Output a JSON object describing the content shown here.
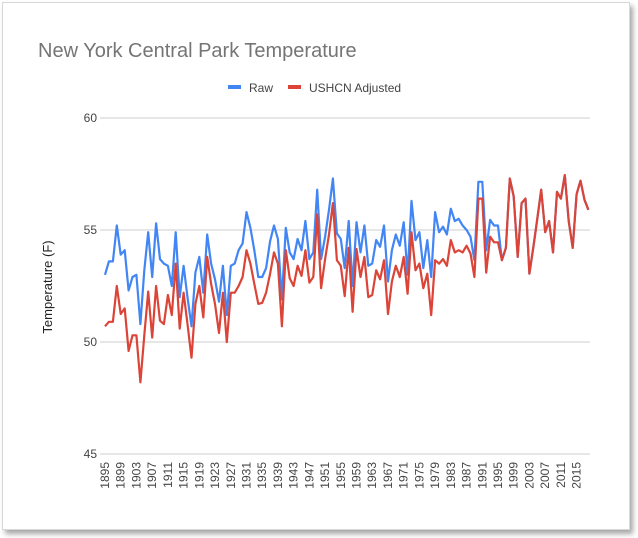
{
  "chart_data": {
    "type": "line",
    "title": "New York Central Park Temperature",
    "xlabel": "",
    "ylabel": "Temperature (F)",
    "ylim": [
      45,
      60
    ],
    "y_ticks": [
      "45",
      "50",
      "55",
      "60"
    ],
    "x_ticks": [
      "1895",
      "1899",
      "1903",
      "1907",
      "1911",
      "1915",
      "1919",
      "1923",
      "1927",
      "1931",
      "1935",
      "1939",
      "1943",
      "1947",
      "1951",
      "1955",
      "1959",
      "1963",
      "1967",
      "1971",
      "1975",
      "1979",
      "1983",
      "1987",
      "1991",
      "1995",
      "1999",
      "2003",
      "2007",
      "2011",
      "2015"
    ],
    "x_start": 1895,
    "grid": true,
    "legend_position": "top",
    "series": [
      {
        "name": "Raw",
        "color": "#4285f4",
        "values": [
          53.0,
          53.6,
          53.6,
          55.2,
          53.9,
          54.1,
          52.3,
          52.9,
          53.0,
          50.8,
          53.2,
          54.9,
          52.9,
          55.3,
          53.7,
          53.5,
          53.4,
          52.5,
          54.9,
          52.0,
          53.4,
          52.0,
          50.7,
          53.1,
          53.8,
          52.2,
          54.8,
          53.5,
          52.8,
          51.8,
          53.4,
          51.2,
          53.4,
          53.5,
          54.1,
          54.4,
          55.8,
          55.1,
          54.1,
          52.9,
          52.9,
          53.3,
          54.5,
          55.2,
          54.6,
          51.9,
          55.1,
          54.0,
          53.7,
          54.6,
          54.1,
          55.4,
          53.7,
          54.0,
          56.8,
          53.7,
          54.7,
          55.9,
          57.3,
          54.85,
          54.6,
          53.3,
          55.4,
          52.5,
          55.35,
          54.0,
          55.2,
          53.4,
          53.5,
          54.55,
          54.25,
          55.2,
          52.7,
          54.1,
          54.8,
          54.3,
          55.35,
          53.0,
          56.3,
          54.55,
          54.9,
          53.3,
          54.55,
          52.9,
          55.8,
          54.9,
          55.15,
          54.8,
          55.95,
          55.4,
          55.5,
          55.2,
          55.0,
          54.7,
          53.65,
          57.15,
          57.15,
          54.1,
          55.45,
          55.2,
          55.2,
          53.65,
          54.2,
          57.3,
          56.5,
          53.8,
          56.2,
          56.4,
          53.05,
          54.25,
          55.5,
          56.8,
          54.9,
          55.4,
          54.0,
          56.7,
          56.4,
          57.45,
          55.4,
          54.2,
          56.6,
          57.2,
          56.35,
          55.9
        ]
      },
      {
        "name": "USHCN Adjusted",
        "color": "#db4437",
        "values": [
          50.7,
          50.9,
          50.9,
          52.5,
          51.25,
          51.5,
          49.6,
          50.3,
          50.3,
          48.2,
          50.3,
          52.25,
          50.2,
          52.5,
          50.95,
          50.8,
          52.1,
          51.2,
          53.5,
          50.6,
          52.2,
          50.8,
          49.3,
          51.7,
          52.5,
          51.1,
          53.8,
          52.6,
          51.7,
          50.4,
          52.2,
          50.0,
          52.2,
          52.2,
          52.5,
          52.9,
          54.1,
          53.5,
          52.6,
          51.7,
          51.75,
          52.2,
          53.05,
          54.0,
          53.5,
          50.7,
          54.1,
          52.85,
          52.5,
          53.4,
          52.95,
          54.1,
          52.65,
          52.9,
          55.7,
          52.4,
          53.7,
          54.8,
          56.2,
          53.65,
          53.4,
          52.05,
          54.2,
          51.35,
          54.15,
          52.9,
          53.8,
          52.0,
          52.1,
          53.2,
          52.8,
          53.65,
          51.25,
          52.7,
          53.4,
          52.9,
          53.8,
          52.15,
          54.9,
          53.2,
          53.5,
          52.4,
          53.05,
          51.2,
          53.65,
          53.5,
          53.7,
          53.4,
          54.55,
          54.0,
          54.1,
          54.0,
          54.3,
          53.95,
          52.9,
          56.4,
          56.4,
          53.1,
          54.7,
          54.45,
          54.45,
          53.65,
          54.2,
          57.3,
          56.5,
          53.8,
          56.2,
          56.4,
          53.05,
          54.25,
          55.5,
          56.8,
          54.9,
          55.4,
          54.0,
          56.7,
          56.4,
          57.45,
          55.4,
          54.2,
          56.6,
          57.2,
          56.35,
          55.9
        ]
      }
    ]
  }
}
